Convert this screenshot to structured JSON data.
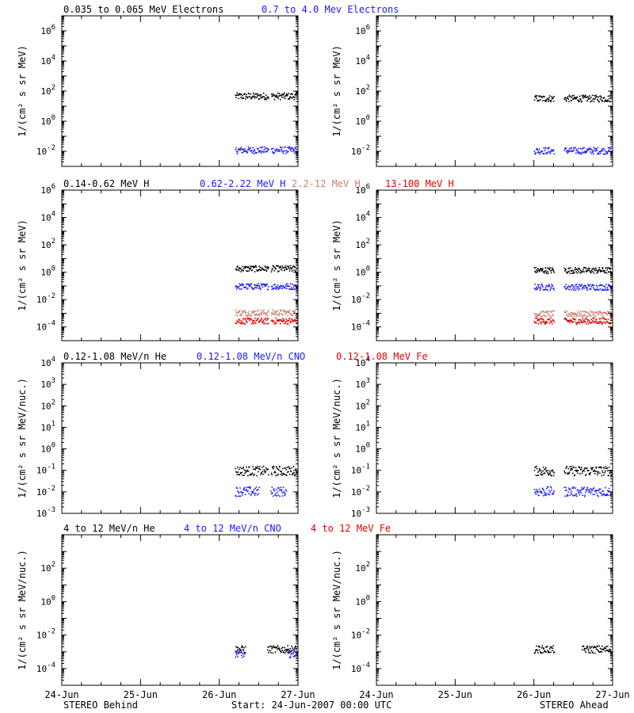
{
  "colors": {
    "black": "#000000",
    "blue": "#1a1aff",
    "tan": "#c8826e",
    "red": "#e00000"
  },
  "rows": [
    {
      "legend": [
        {
          "text": "0.035 to 0.065 MeV Electrons",
          "color": "#000000"
        },
        {
          "text": "0.7 to 4.0 Mev Electrons",
          "color": "#1a1aff"
        }
      ],
      "ylabel": "1/(cm² s sr MeV)",
      "scale": "log",
      "ymin_exp": -3,
      "ymax_exp": 7,
      "tick_exps": [
        -2,
        0,
        2,
        4,
        6
      ]
    },
    {
      "legend": [
        {
          "text": "0.14-0.62 MeV H",
          "color": "#000000"
        },
        {
          "text": "0.62-2.22 MeV H",
          "color": "#1a1aff"
        },
        {
          "text": "2.2-12 MeV H",
          "color": "#c8826e"
        },
        {
          "text": "13-100 MeV H",
          "color": "#e00000"
        }
      ],
      "ylabel": "1/(cm² s sr MeV)",
      "scale": "log",
      "ymin_exp": -5,
      "ymax_exp": 6,
      "tick_exps": [
        -4,
        -2,
        0,
        2,
        4,
        6
      ]
    },
    {
      "legend": [
        {
          "text": "0.12-1.08 MeV/n He",
          "color": "#000000"
        },
        {
          "text": "0.12-1.08 MeV/n CNO",
          "color": "#1a1aff"
        },
        {
          "text": "0.12-1.08 MeV Fe",
          "color": "#e00000"
        }
      ],
      "ylabel": "1/(cm² s sr MeV/nuc.)",
      "scale": "log",
      "ymin_exp": -3,
      "ymax_exp": 4,
      "tick_exps": [
        -3,
        -2,
        -1,
        0,
        1,
        2,
        3,
        4
      ]
    },
    {
      "legend": [
        {
          "text": "4 to 12 MeV/n He",
          "color": "#000000"
        },
        {
          "text": "4 to 12 MeV/n CNO",
          "color": "#1a1aff"
        },
        {
          "text": "4 to 12 MeV Fe",
          "color": "#e00000"
        }
      ],
      "ylabel": "1/(cm² s sr MeV/nuc.)",
      "scale": "log",
      "ymin_exp": -5,
      "ymax_exp": 4,
      "tick_exps": [
        -4,
        -2,
        0,
        2
      ]
    }
  ],
  "xaxis": {
    "ticks": [
      "24-Jun",
      "25-Jun",
      "26-Jun",
      "27-Jun"
    ],
    "range_days": [
      0,
      3
    ]
  },
  "footer": {
    "left": "STEREO Behind",
    "center": "Start: 24-Jun-2007 00:00 UTC",
    "right": "STEREO Ahead"
  },
  "chart_data": [
    {
      "panel": "behind-electrons",
      "type": "scatter",
      "series": [
        {
          "name": "0.035 to 0.065 MeV Electrons",
          "color": "#000000",
          "x_days": [
            2.2,
            2.98
          ],
          "level": 50,
          "gaps": [
            [
              2.62,
              2.65
            ]
          ]
        },
        {
          "name": "0.7 to 4.0 Mev Electrons",
          "color": "#1a1aff",
          "x_days": [
            2.2,
            2.98
          ],
          "level": 0.013,
          "gaps": [
            [
              2.62,
              2.65
            ]
          ]
        }
      ]
    },
    {
      "panel": "ahead-electrons",
      "type": "scatter",
      "series": [
        {
          "name": "0.035 to 0.065 MeV Electrons",
          "color": "#000000",
          "x_days": [
            2.0,
            2.98
          ],
          "level": 35,
          "gaps": [
            [
              2.25,
              2.38
            ]
          ]
        },
        {
          "name": "0.7 to 4.0 Mev Electrons",
          "color": "#1a1aff",
          "x_days": [
            2.0,
            2.98
          ],
          "level": 0.012,
          "gaps": [
            [
              2.25,
              2.38
            ]
          ]
        }
      ]
    },
    {
      "panel": "behind-protons",
      "type": "scatter",
      "series": [
        {
          "name": "0.14-0.62 MeV H",
          "color": "#000000",
          "x_days": [
            2.2,
            2.98
          ],
          "level": 2.0,
          "gaps": [
            [
              2.62,
              2.65
            ]
          ]
        },
        {
          "name": "0.62-2.22 MeV H",
          "color": "#1a1aff",
          "x_days": [
            2.2,
            2.98
          ],
          "level": 0.1,
          "gaps": [
            [
              2.62,
              2.65
            ]
          ]
        },
        {
          "name": "2.2-12 MeV H",
          "color": "#c8826e",
          "x_days": [
            2.2,
            2.98
          ],
          "level": 0.0012,
          "gaps": [
            [
              2.62,
              2.65
            ]
          ]
        },
        {
          "name": "13-100 MeV H",
          "color": "#e00000",
          "x_days": [
            2.2,
            2.98
          ],
          "level": 0.0003,
          "gaps": [
            [
              2.62,
              2.65
            ]
          ]
        }
      ]
    },
    {
      "panel": "ahead-protons",
      "type": "scatter",
      "series": [
        {
          "name": "0.14-0.62 MeV H",
          "color": "#000000",
          "x_days": [
            2.0,
            2.98
          ],
          "level": 1.5,
          "gaps": [
            [
              2.25,
              2.38
            ]
          ]
        },
        {
          "name": "0.62-2.22 MeV H",
          "color": "#1a1aff",
          "x_days": [
            2.0,
            2.98
          ],
          "level": 0.09,
          "gaps": [
            [
              2.25,
              2.38
            ]
          ]
        },
        {
          "name": "2.2-12 MeV H",
          "color": "#c8826e",
          "x_days": [
            2.0,
            2.98
          ],
          "level": 0.001,
          "gaps": [
            [
              2.25,
              2.38
            ]
          ]
        },
        {
          "name": "13-100 MeV H",
          "color": "#e00000",
          "x_days": [
            2.0,
            2.98
          ],
          "level": 0.0003,
          "gaps": [
            [
              2.25,
              2.38
            ]
          ]
        }
      ]
    },
    {
      "panel": "behind-heavy-low",
      "type": "scatter",
      "series": [
        {
          "name": "0.12-1.08 MeV/n He",
          "color": "#000000",
          "x_days": [
            2.2,
            2.98
          ],
          "level": 0.1,
          "gaps": [
            [
              2.62,
              2.65
            ]
          ]
        },
        {
          "name": "0.12-1.08 MeV/n CNO",
          "color": "#1a1aff",
          "x_days": [
            2.2,
            2.85
          ],
          "level": 0.011,
          "gaps": [
            [
              2.5,
              2.65
            ]
          ]
        }
      ]
    },
    {
      "panel": "ahead-heavy-low",
      "type": "scatter",
      "series": [
        {
          "name": "0.12-1.08 MeV/n He",
          "color": "#000000",
          "x_days": [
            2.0,
            2.98
          ],
          "level": 0.1,
          "gaps": [
            [
              2.25,
              2.38
            ]
          ]
        },
        {
          "name": "0.12-1.08 MeV/n CNO",
          "color": "#1a1aff",
          "x_days": [
            2.0,
            2.98
          ],
          "level": 0.011,
          "gaps": [
            [
              2.25,
              2.38
            ]
          ]
        }
      ]
    },
    {
      "panel": "behind-heavy-high",
      "type": "scatter",
      "series": [
        {
          "name": "4 to 12 MeV/n He",
          "color": "#000000",
          "x_days": [
            2.2,
            2.98
          ],
          "level": 0.0015,
          "gaps": [
            [
              2.33,
              2.6
            ]
          ]
        },
        {
          "name": "4 to 12 MeV/n CNO",
          "color": "#1a1aff",
          "x_days": [
            2.2,
            2.98
          ],
          "level": 0.0008,
          "gaps": [
            [
              2.33,
              2.85
            ]
          ]
        }
      ]
    },
    {
      "panel": "ahead-heavy-high",
      "type": "scatter",
      "series": [
        {
          "name": "4 to 12 MeV/n He",
          "color": "#000000",
          "x_days": [
            2.0,
            2.98
          ],
          "level": 0.0015,
          "gaps": [
            [
              2.25,
              2.6
            ]
          ]
        }
      ]
    }
  ]
}
